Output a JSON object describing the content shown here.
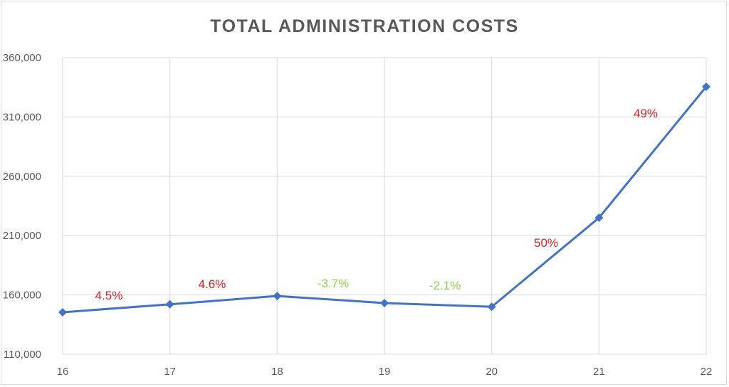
{
  "chart_data": {
    "type": "line",
    "title": "TOTAL ADMINISTRATION COSTS",
    "xlabel": "",
    "ylabel": "",
    "x": [
      16,
      17,
      18,
      19,
      20,
      21,
      22
    ],
    "y_ticks": [
      "110,000",
      "160,000",
      "210,000",
      "260,000",
      "310,000",
      "360,000"
    ],
    "ylim": [
      110000,
      360000
    ],
    "grid": true,
    "series": [
      {
        "values": [
          145400,
          152100,
          159100,
          153200,
          150000,
          225000,
          335500
        ],
        "color": "#4472C4",
        "marker": "diamond"
      }
    ],
    "annotations": [
      {
        "text": "4.5%",
        "between": [
          16,
          17
        ],
        "color": "#D0202A"
      },
      {
        "text": "4.6%",
        "between": [
          17,
          18
        ],
        "color": "#D0202A"
      },
      {
        "text": "-3.7%",
        "between": [
          18,
          19
        ],
        "color": "#92D050"
      },
      {
        "text": "-2.1%",
        "between": [
          19,
          20
        ],
        "color": "#92D050"
      },
      {
        "text": "50%",
        "between": [
          20,
          21
        ],
        "color": "#D0202A"
      },
      {
        "text": "49%",
        "between": [
          21,
          22
        ],
        "color": "#D0202A"
      }
    ]
  }
}
